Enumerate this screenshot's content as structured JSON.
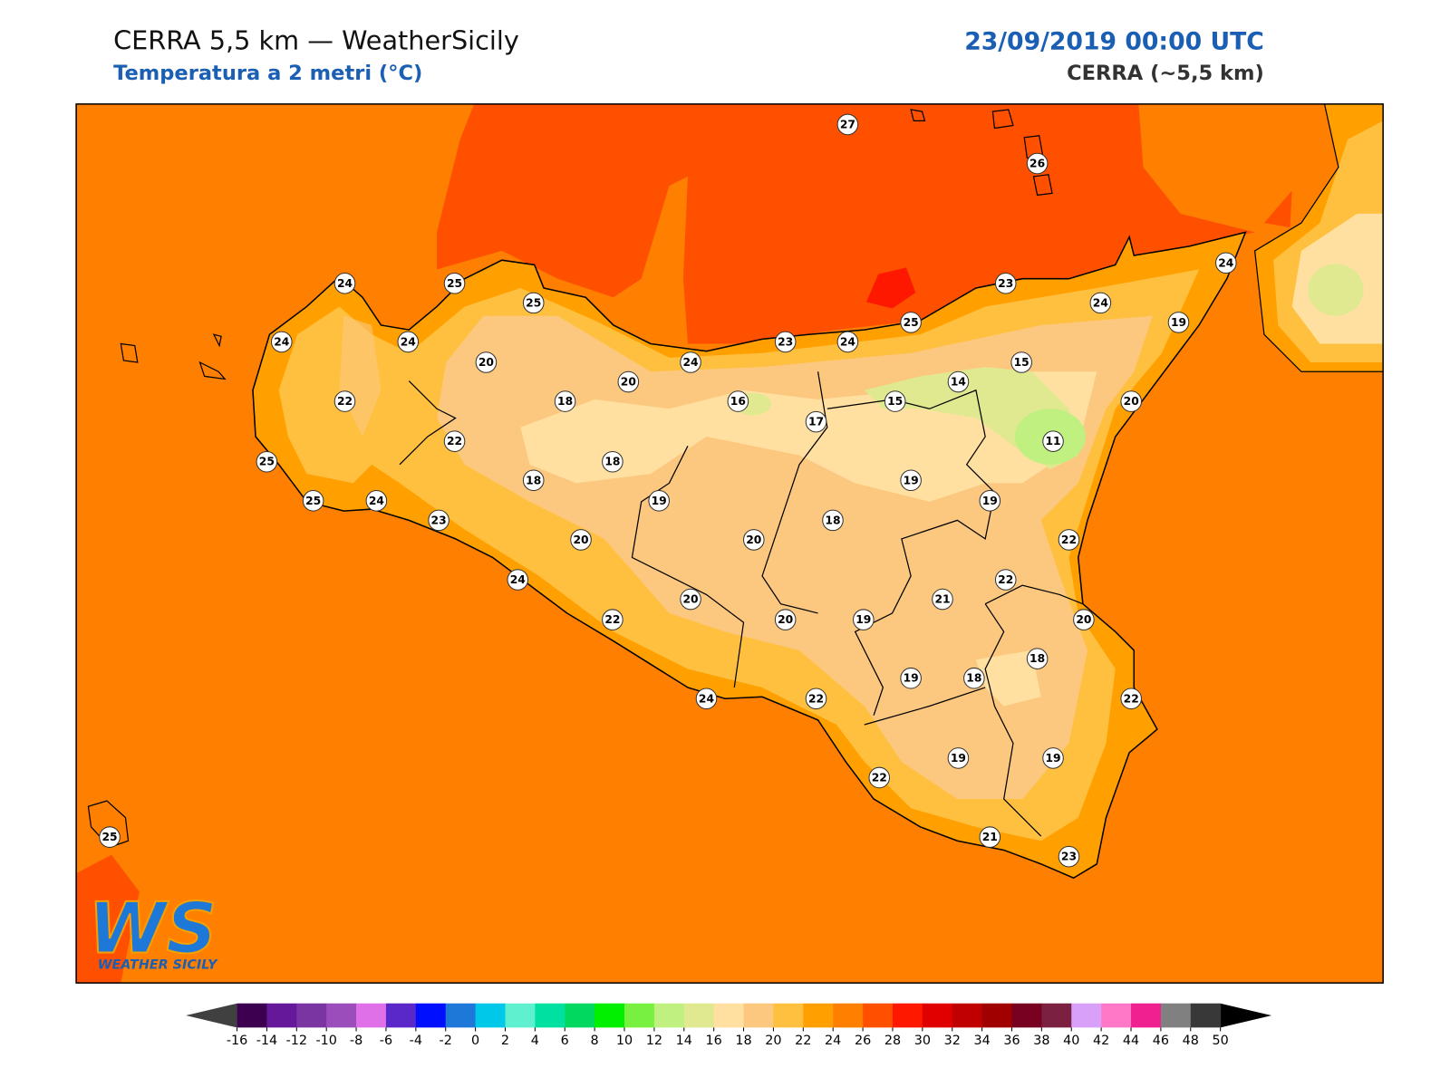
{
  "header": {
    "title": "CERRA 5,5 km — WeatherSicily",
    "subtitle": "Temperatura a 2 metri (°C)",
    "datetime": "23/09/2019 00:00 UTC",
    "model": "CERRA (~5,5 km)"
  },
  "stations": [
    27,
    26,
    24,
    25,
    25,
    23,
    24,
    24,
    25,
    19,
    24,
    24,
    23,
    24,
    24,
    20,
    20,
    15,
    14,
    22,
    18,
    16,
    15,
    20,
    17,
    22,
    11,
    18,
    25,
    18,
    19,
    25,
    24,
    19,
    19,
    23,
    18,
    20,
    20,
    22,
    24,
    22,
    20,
    21,
    22,
    20,
    19,
    20,
    18,
    19,
    18,
    24,
    22,
    22,
    22,
    19,
    19,
    25,
    21,
    23
  ],
  "colorbar": {
    "ticks": [
      -16,
      -14,
      -12,
      -10,
      -8,
      -6,
      -4,
      -2,
      0,
      2,
      4,
      6,
      8,
      10,
      12,
      14,
      16,
      18,
      20,
      22,
      24,
      26,
      28,
      30,
      32,
      34,
      36,
      38,
      40,
      42,
      44,
      46,
      48,
      50
    ],
    "colors": [
      "#3d0050",
      "#66189a",
      "#7b35a3",
      "#9b4dbb",
      "#e070e8",
      "#5a28c8",
      "#0010ff",
      "#1e78d8",
      "#00c8e8",
      "#5ff0d0",
      "#00e0a0",
      "#00d860",
      "#00f000",
      "#78f040",
      "#c0f080",
      "#e0e890",
      "#ffe0a0",
      "#fcc880",
      "#ffc040",
      "#ffa000",
      "#ff8000",
      "#ff5000",
      "#ff1800",
      "#e00000",
      "#c00000",
      "#a00000",
      "#780020",
      "#7b2040",
      "#d8a0f8",
      "#ff78c8",
      "#f02090",
      "#808080",
      "#383838"
    ],
    "under": "#404040",
    "over": "#000000"
  },
  "logo": {
    "mark": "WS",
    "name": "WEATHER SICILY"
  }
}
